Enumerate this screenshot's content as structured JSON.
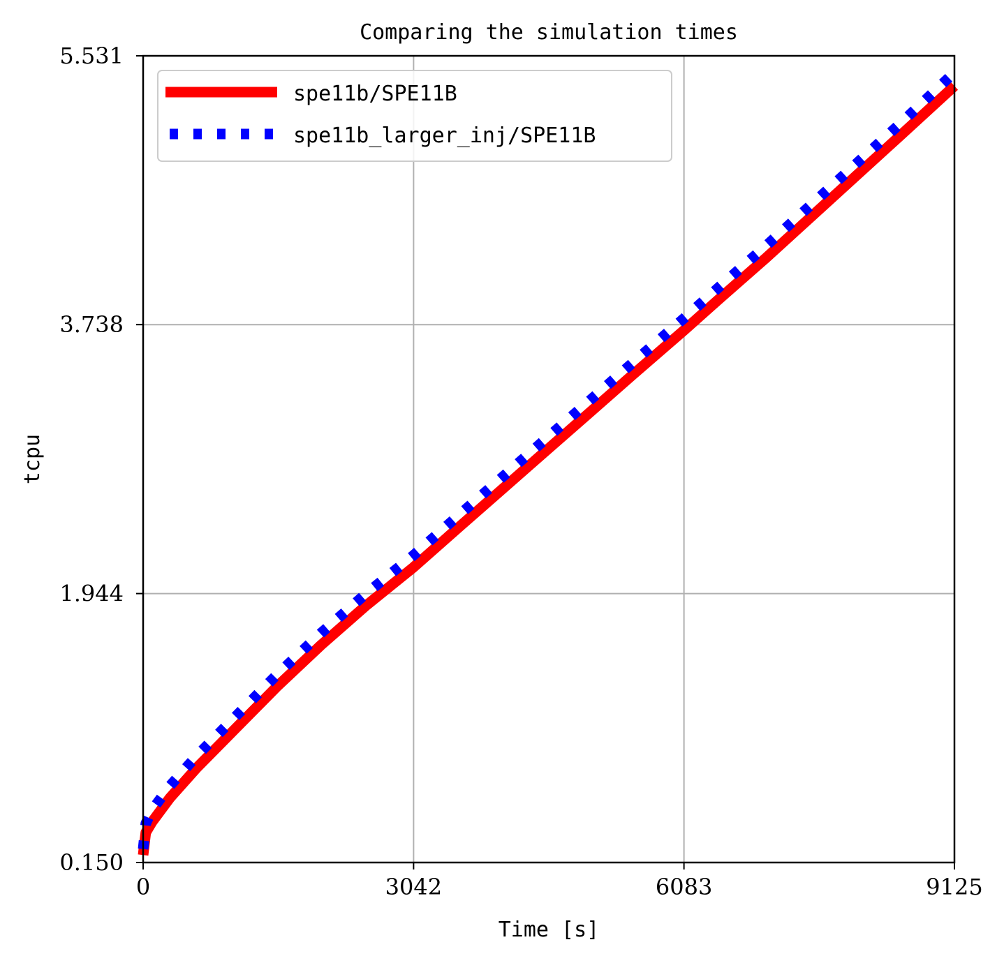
{
  "chart_data": {
    "type": "line",
    "title": "Comparing the simulation times",
    "xlabel": "Time [s]",
    "ylabel": "tcpu",
    "xlim": [
      0,
      9125
    ],
    "ylim": [
      0.15,
      5.531
    ],
    "xticks": [
      "0",
      "3042",
      "6083",
      "9125"
    ],
    "yticks": [
      "0.150",
      "1.944",
      "3.738",
      "5.531"
    ],
    "grid": true,
    "legend_position": "top-left",
    "series": [
      {
        "name": "spe11b/SPE11B",
        "color": "#ff0000",
        "style": "solid",
        "x": [
          0,
          30,
          100,
          300,
          600,
          1000,
          1500,
          2000,
          2500,
          3042,
          3500,
          4000,
          4500,
          5000,
          5500,
          6083,
          6500,
          7000,
          7500,
          8000,
          8500,
          9125
        ],
        "y": [
          0.2,
          0.35,
          0.42,
          0.58,
          0.78,
          1.02,
          1.32,
          1.6,
          1.86,
          2.12,
          2.36,
          2.62,
          2.88,
          3.14,
          3.4,
          3.7,
          3.92,
          4.18,
          4.45,
          4.72,
          4.99,
          5.33
        ]
      },
      {
        "name": "spe11b_larger_inj/SPE11B",
        "color": "#0000ff",
        "style": "dotted",
        "x": [
          0,
          30,
          100,
          300,
          600,
          1000,
          1500,
          2000,
          2500,
          3042,
          3500,
          4000,
          4500,
          5000,
          5500,
          6083,
          6500,
          7000,
          7500,
          8000,
          8500,
          9125
        ],
        "y": [
          0.24,
          0.41,
          0.5,
          0.66,
          0.86,
          1.1,
          1.4,
          1.68,
          1.94,
          2.2,
          2.44,
          2.7,
          2.96,
          3.22,
          3.48,
          3.78,
          4.0,
          4.26,
          4.53,
          4.8,
          5.07,
          5.42
        ]
      }
    ]
  }
}
